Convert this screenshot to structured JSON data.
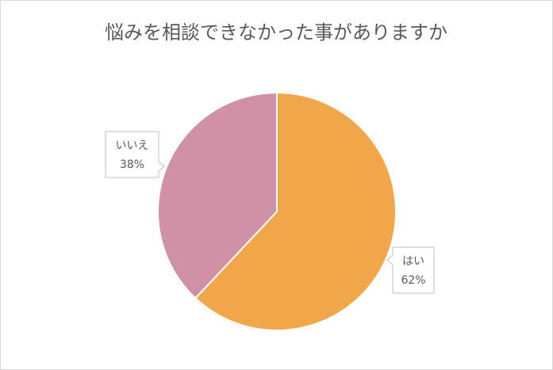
{
  "chart_data": {
    "type": "pie",
    "title": "悩みを相談できなかった事がありますか",
    "categories": [
      "はい",
      "いいえ"
    ],
    "values": [
      62,
      38
    ],
    "value_labels": [
      "62%",
      "38%"
    ],
    "colors": [
      "#f2a64a",
      "#d091a7"
    ]
  }
}
